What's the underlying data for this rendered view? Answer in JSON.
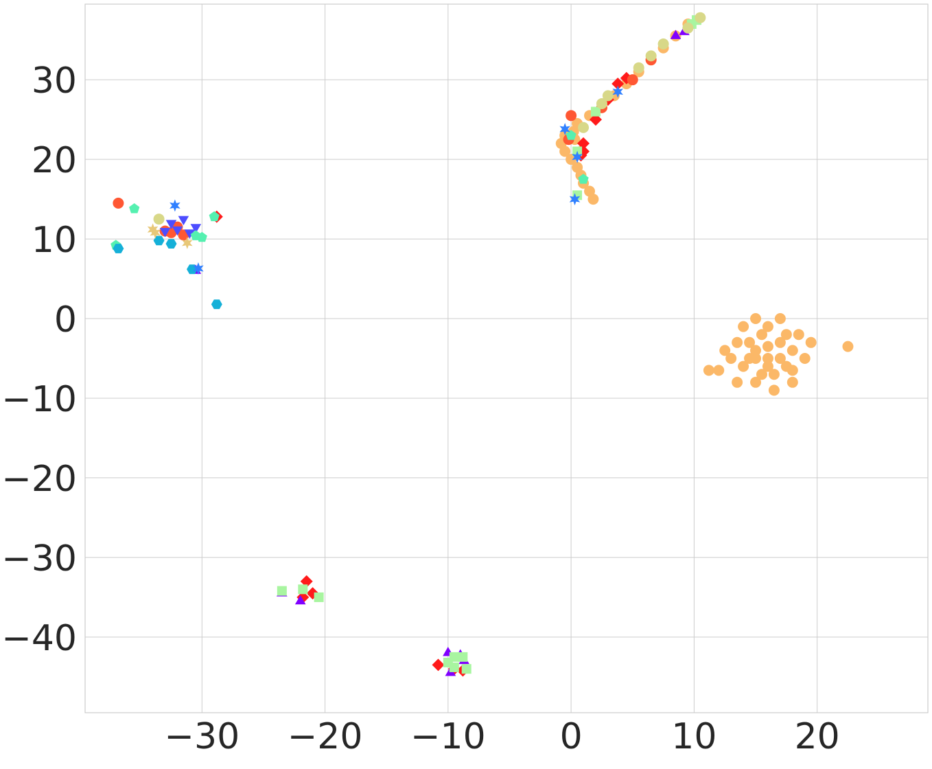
{
  "chart_data": {
    "type": "scatter",
    "title": "",
    "xlabel": "",
    "ylabel": "",
    "xlim": [
      -39.5,
      29
    ],
    "ylim": [
      -49.5,
      39.5
    ],
    "grid": true,
    "x_ticks": [
      {
        "value": -30,
        "label": "−30"
      },
      {
        "value": -20,
        "label": "−20"
      },
      {
        "value": -10,
        "label": "−10"
      },
      {
        "value": 0,
        "label": "0"
      },
      {
        "value": 10,
        "label": "10"
      },
      {
        "value": 20,
        "label": "20"
      }
    ],
    "y_ticks": [
      {
        "value": 30,
        "label": "30"
      },
      {
        "value": 20,
        "label": "20"
      },
      {
        "value": 10,
        "label": "10"
      },
      {
        "value": 0,
        "label": "0"
      },
      {
        "value": -10,
        "label": "−10"
      },
      {
        "value": -20,
        "label": "−20"
      },
      {
        "value": -30,
        "label": "−30"
      },
      {
        "value": -40,
        "label": "−40"
      }
    ],
    "series": [
      {
        "name": "orange-circle",
        "color": "#fbb868",
        "marker": "circle",
        "points": [
          [
            -0.5,
            23
          ],
          [
            -0.8,
            22
          ],
          [
            -0.5,
            21
          ],
          [
            0,
            20
          ],
          [
            0.5,
            19
          ],
          [
            0.8,
            18
          ],
          [
            1,
            17
          ],
          [
            1.5,
            16
          ],
          [
            1.8,
            15
          ],
          [
            0.2,
            23.5
          ],
          [
            0.5,
            24.5
          ],
          [
            1.5,
            25.5
          ],
          [
            2.5,
            26.5
          ],
          [
            3.5,
            28
          ],
          [
            4.5,
            29.5
          ],
          [
            5.5,
            31
          ],
          [
            6.5,
            32.5
          ],
          [
            7.5,
            34
          ],
          [
            8.5,
            35.5
          ],
          [
            9.5,
            37
          ],
          [
            0.3,
            22.5
          ],
          [
            0.8,
            21
          ],
          [
            15,
            -4
          ],
          [
            16,
            -5
          ],
          [
            17,
            -3
          ],
          [
            14,
            -6
          ],
          [
            18,
            -4
          ],
          [
            15.5,
            -2
          ],
          [
            16.5,
            -7
          ],
          [
            13.5,
            -3
          ],
          [
            17.5,
            -6
          ],
          [
            14.5,
            -5
          ],
          [
            16,
            -1
          ],
          [
            15,
            -8
          ],
          [
            18.5,
            -2
          ],
          [
            13,
            -5
          ],
          [
            19,
            -5
          ],
          [
            16.5,
            -9
          ],
          [
            14,
            -1
          ],
          [
            17,
            0
          ],
          [
            15,
            0
          ],
          [
            12.5,
            -4
          ],
          [
            19.5,
            -3
          ],
          [
            18,
            -8
          ],
          [
            13.5,
            -8
          ],
          [
            12,
            -6.5
          ],
          [
            22.5,
            -3.5
          ],
          [
            11.2,
            -6.5
          ],
          [
            16,
            -3.5
          ],
          [
            15,
            -5
          ],
          [
            17,
            -5
          ],
          [
            16,
            -6
          ],
          [
            14.5,
            -3
          ],
          [
            17.5,
            -2
          ],
          [
            15.5,
            -7
          ],
          [
            18,
            -6.5
          ]
        ]
      },
      {
        "name": "red-diamond",
        "color": "#ff1a1a",
        "marker": "diamond",
        "points": [
          [
            1,
            21
          ],
          [
            1,
            22
          ],
          [
            0.8,
            20.5
          ],
          [
            2,
            25
          ],
          [
            3,
            27.5
          ],
          [
            3.8,
            29.5
          ],
          [
            4.5,
            30.2
          ],
          [
            -21.8,
            -35
          ],
          [
            -21.5,
            -33
          ],
          [
            -21,
            -34.5
          ],
          [
            -10.8,
            -43.5
          ],
          [
            -9.5,
            -44
          ],
          [
            -8.8,
            -44.2
          ],
          [
            -28.8,
            12.8
          ]
        ]
      },
      {
        "name": "red-orange-circle",
        "color": "#ff5733",
        "marker": "circle",
        "points": [
          [
            -36.8,
            14.5
          ],
          [
            -33,
            11
          ],
          [
            -32,
            11.5
          ],
          [
            -31.5,
            10.5
          ],
          [
            -32.5,
            10.8
          ],
          [
            0,
            25.5
          ],
          [
            -0.2,
            22.5
          ],
          [
            2.5,
            26.5
          ],
          [
            5,
            30
          ],
          [
            6.5,
            32.5
          ]
        ]
      },
      {
        "name": "blue-triangle-down",
        "color": "#4d4dff",
        "marker": "triangle-down",
        "points": [
          [
            -32.5,
            12
          ],
          [
            -31.5,
            12.5
          ],
          [
            -33,
            11
          ],
          [
            -30.5,
            11.5
          ],
          [
            -31,
            10.8
          ],
          [
            -32,
            11.2
          ]
        ]
      },
      {
        "name": "purple-triangle",
        "color": "#8000ff",
        "marker": "triangle",
        "points": [
          [
            -10,
            -42
          ],
          [
            -9,
            -42.3
          ],
          [
            -8.7,
            -43
          ],
          [
            -9.8,
            -44.5
          ],
          [
            -22,
            -35.5
          ],
          [
            -23.5,
            -34.5
          ],
          [
            -30.5,
            6
          ],
          [
            8.5,
            35.5
          ],
          [
            9.2,
            36
          ]
        ]
      },
      {
        "name": "green-square",
        "color": "#a8f5a0",
        "marker": "square",
        "points": [
          [
            -23.5,
            -34.2
          ],
          [
            -21.8,
            -34
          ],
          [
            -20.5,
            -35
          ],
          [
            -9.5,
            -42.5
          ],
          [
            -8.8,
            -42.5
          ],
          [
            -9.5,
            -43.8
          ],
          [
            -8.5,
            -44
          ],
          [
            -10,
            -43.2
          ],
          [
            0.5,
            15.5
          ],
          [
            0.5,
            21
          ],
          [
            2,
            26
          ],
          [
            9.8,
            37
          ],
          [
            10.2,
            37.5
          ]
        ]
      },
      {
        "name": "teal-pentagon",
        "color": "#55f0b0",
        "marker": "pentagon",
        "points": [
          [
            -35.5,
            13.8
          ],
          [
            -30,
            10.2
          ],
          [
            -30.5,
            10.4
          ],
          [
            -29,
            12.8
          ],
          [
            -37,
            9.2
          ],
          [
            0,
            23
          ],
          [
            1,
            17.5
          ]
        ]
      },
      {
        "name": "cyan-hexagon",
        "color": "#15b0d8",
        "marker": "hexagon",
        "points": [
          [
            -36.8,
            8.8
          ],
          [
            -33.5,
            9.8
          ],
          [
            -32.5,
            9.4
          ],
          [
            -28.8,
            1.8
          ],
          [
            -30.8,
            6.2
          ]
        ]
      },
      {
        "name": "khaki-circle",
        "color": "#d8d888",
        "marker": "circle",
        "points": [
          [
            -33.5,
            12.5
          ],
          [
            1,
            24
          ],
          [
            2.5,
            27
          ],
          [
            3,
            28
          ],
          [
            5.5,
            31.5
          ],
          [
            6.5,
            33
          ],
          [
            7.5,
            34.5
          ],
          [
            9.5,
            36.5
          ],
          [
            10.5,
            37.8
          ]
        ]
      },
      {
        "name": "blue-star",
        "color": "#3080ff",
        "marker": "star",
        "points": [
          [
            -32.2,
            14.2
          ],
          [
            0.3,
            15
          ],
          [
            0.5,
            20.3
          ],
          [
            -30.3,
            6.3
          ],
          [
            3.8,
            28.5
          ],
          [
            -0.5,
            23.8
          ]
        ]
      },
      {
        "name": "tan-star",
        "color": "#e8c878",
        "marker": "star",
        "points": [
          [
            -33.8,
            10.8
          ],
          [
            -31.2,
            9.5
          ],
          [
            -34,
            11.2
          ]
        ]
      }
    ]
  }
}
